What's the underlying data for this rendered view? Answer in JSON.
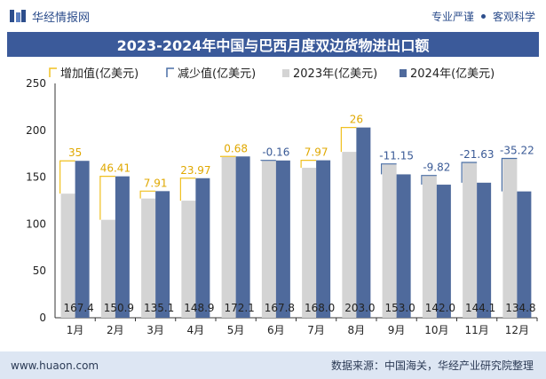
{
  "header": {
    "brand": "华经情报网",
    "tag1": "专业严谨",
    "tag2": "客观科学"
  },
  "title": "2023-2024年中国与巴西月度双边货物进出口额",
  "footer": {
    "url": "www.huaon.com",
    "source": "数据来源：中国海关，华经产业研究院整理"
  },
  "colors": {
    "increase": "#f0c020",
    "decrease": "#4a6fa5",
    "y2023": "#d4d4d4",
    "y2024": "#4f6a9c",
    "title_bg": "#3b5a9a"
  },
  "chart_data": {
    "type": "bar",
    "categories": [
      "1月",
      "2月",
      "3月",
      "4月",
      "5月",
      "6月",
      "7月",
      "8月",
      "9月",
      "10月",
      "11月",
      "12月"
    ],
    "series": [
      {
        "name": "2023年(亿美元)",
        "values": [
          132.4,
          104.5,
          127.2,
          124.9,
          171.4,
          167.9,
          160.0,
          177.0,
          164.1,
          151.8,
          165.7,
          170.0
        ]
      },
      {
        "name": "2024年(亿美元)",
        "values": [
          167.4,
          150.9,
          135.1,
          148.9,
          172.1,
          167.8,
          168.0,
          203.0,
          153.0,
          142.0,
          144.1,
          134.8
        ]
      }
    ],
    "changes": [
      35,
      46.41,
      7.91,
      23.97,
      0.68,
      -0.16,
      7.97,
      26,
      -11.15,
      -9.82,
      -21.63,
      -35.22
    ],
    "change_labels": [
      "35",
      "46.41",
      "7.91",
      "23.97",
      "0.68",
      "-0.16",
      "7.97",
      "26",
      "-11.15",
      "-9.82",
      "-21.63",
      "-35.22"
    ],
    "value_labels": [
      "167.4",
      "150.9",
      "135.1",
      "148.9",
      "172.1",
      "167.8",
      "168.0",
      "203.0",
      "153.0",
      "142.0",
      "144.1",
      "134.8"
    ],
    "legend": [
      "增加值(亿美元)",
      "减少值(亿美元)",
      "2023年(亿美元)",
      "2024年(亿美元)"
    ],
    "yticks": [
      "0",
      "50",
      "100",
      "150",
      "200",
      "250"
    ],
    "ylim": [
      0,
      250
    ]
  }
}
